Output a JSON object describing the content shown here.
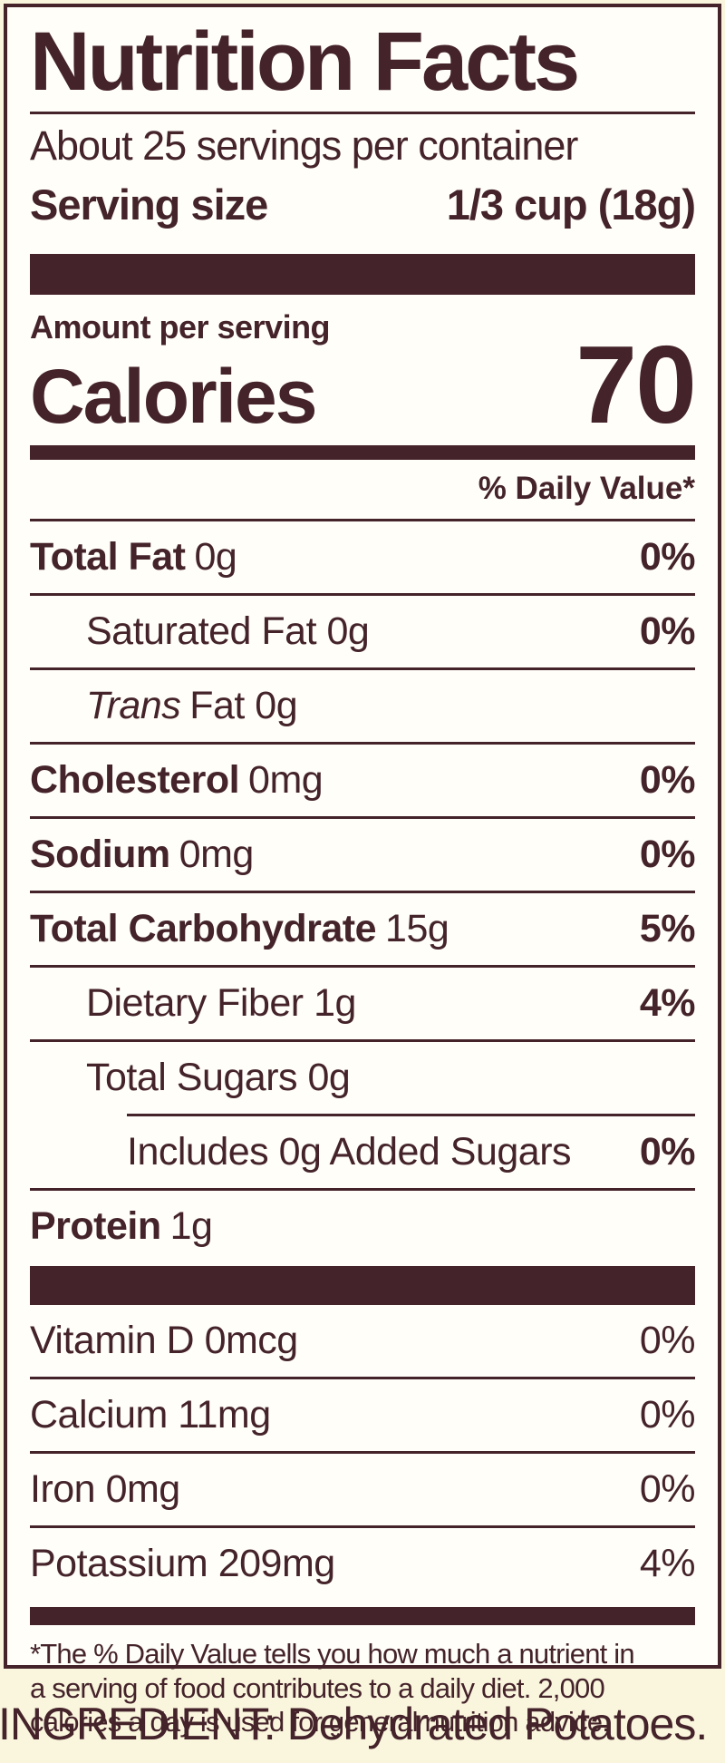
{
  "label": {
    "title": "Nutrition Facts",
    "servings_per_container": "About 25 servings per container",
    "serving_size": {
      "label": "Serving size",
      "value": "1/3 cup (18g)"
    },
    "amount_per_serving": "Amount per serving",
    "calories": {
      "label": "Calories",
      "value": "70"
    },
    "daily_value_header": "% Daily Value*",
    "rows": [
      {
        "name": "Total Fat",
        "amount": "0g",
        "pct": "0%"
      },
      {
        "name": "Saturated Fat",
        "amount": "0g",
        "pct": "0%"
      },
      {
        "name_italic": "Trans",
        "amount": "Fat 0g",
        "pct": ""
      },
      {
        "name": "Cholesterol",
        "amount": "0mg",
        "pct": "0%"
      },
      {
        "name": "Sodium",
        "amount": "0mg",
        "pct": "0%"
      },
      {
        "name": "Total Carbohydrate",
        "amount": "15g",
        "pct": "5%"
      },
      {
        "name": "Dietary Fiber",
        "amount": "1g",
        "pct": "4%"
      },
      {
        "name": "Total Sugars",
        "amount": "0g",
        "pct": ""
      },
      {
        "name": "Includes 0g Added Sugars",
        "amount": "",
        "pct": "0%"
      },
      {
        "name": "Protein",
        "amount": "1g",
        "pct": ""
      }
    ],
    "vitamins": [
      {
        "name": "Vitamin D",
        "amount": "0mcg",
        "pct": "0%"
      },
      {
        "name": "Calcium",
        "amount": "11mg",
        "pct": "0%"
      },
      {
        "name": "Iron",
        "amount": "0mg",
        "pct": "0%"
      },
      {
        "name": "Potassium",
        "amount": "209mg",
        "pct": "4%"
      }
    ],
    "footnote_lines": [
      "*The % Daily Value tells you how much a nutrient in",
      "a serving of food contributes to a daily diet. 2,000",
      "calories a day is used for general nutrition advice."
    ]
  },
  "ingredient_line": "INGREDIENT: Dehydrated Potatoes.",
  "colors": {
    "text_and_rules": "#44232a",
    "label_background": "#fffef9",
    "page_background": "#faf5dd"
  }
}
